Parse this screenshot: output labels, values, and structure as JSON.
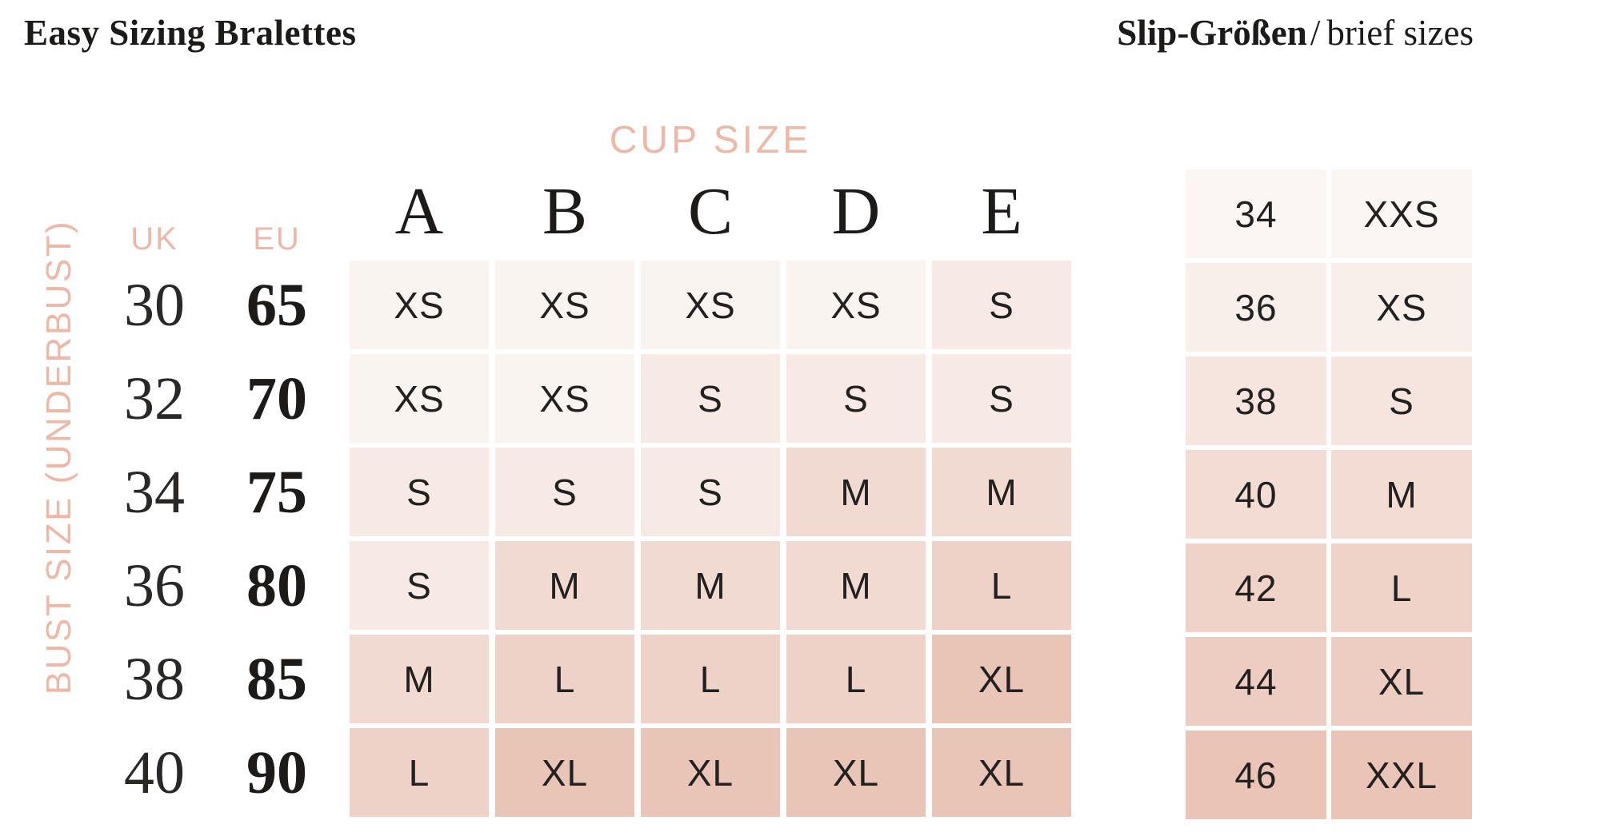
{
  "page": {
    "background": "#ffffff",
    "title_left": "Easy Sizing Bralettes",
    "title_right": {
      "bold": "Slip-Größen",
      "separator": "/",
      "regular": "brief sizes"
    }
  },
  "colors": {
    "pink_label_text": "#ecb9a9",
    "dark_text": "#232120",
    "size_cell_colors": {
      "XS": "#faf4f1",
      "S": "#f7eae5",
      "M": "#f1dad1",
      "L": "#eed2c8",
      "XL": "#e9c5b8"
    },
    "brief_row_colors": [
      "#fbf6f3",
      "#f8eeea",
      "#f6e4de",
      "#f2dcd3",
      "#efd3c9",
      "#edccc1",
      "#e9c4b7"
    ]
  },
  "bralette_table": {
    "cup_size_label": "CUP SIZE",
    "cup_columns": [
      "A",
      "B",
      "C",
      "D",
      "E"
    ],
    "uk_header": "UK",
    "eu_header": "EU",
    "bust_axis_label": "BUST SIZE (UNDERBUST)",
    "rows": [
      {
        "uk": "30",
        "eu": "65",
        "sizes": [
          "XS",
          "XS",
          "XS",
          "XS",
          "S"
        ]
      },
      {
        "uk": "32",
        "eu": "70",
        "sizes": [
          "XS",
          "XS",
          "S",
          "S",
          "S"
        ]
      },
      {
        "uk": "34",
        "eu": "75",
        "sizes": [
          "S",
          "S",
          "S",
          "M",
          "M"
        ]
      },
      {
        "uk": "36",
        "eu": "80",
        "sizes": [
          "S",
          "M",
          "M",
          "M",
          "L"
        ]
      },
      {
        "uk": "38",
        "eu": "85",
        "sizes": [
          "M",
          "L",
          "L",
          "L",
          "XL"
        ]
      },
      {
        "uk": "40",
        "eu": "90",
        "sizes": [
          "L",
          "XL",
          "XL",
          "XL",
          "XL"
        ]
      }
    ]
  },
  "brief_table": {
    "rows": [
      {
        "eu": "34",
        "size": "XXS"
      },
      {
        "eu": "36",
        "size": "XS"
      },
      {
        "eu": "38",
        "size": "S"
      },
      {
        "eu": "40",
        "size": "M"
      },
      {
        "eu": "42",
        "size": "L"
      },
      {
        "eu": "44",
        "size": "XL"
      },
      {
        "eu": "46",
        "size": "XXL"
      }
    ]
  }
}
